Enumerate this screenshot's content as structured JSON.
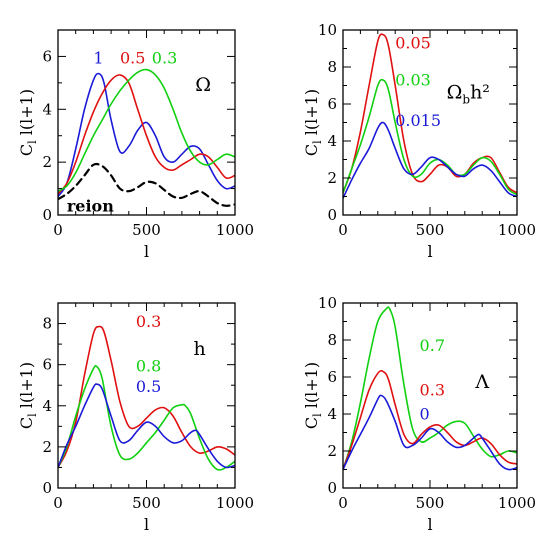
{
  "chart_data": [
    {
      "type": "line",
      "panel": "top-left",
      "xlabel": "l",
      "ylabel": "C_l l(l+1)",
      "xlim": [
        0,
        1000
      ],
      "ylim": [
        0,
        7
      ],
      "xticks": [
        0,
        500,
        1000
      ],
      "xtick_labels": [
        "0",
        "500",
        "1000"
      ],
      "yticks": [
        0,
        2,
        4,
        6
      ],
      "ytick_labels": [
        "0",
        "2",
        "4",
        "6"
      ],
      "symbol": "Ω",
      "symbol_sub": "",
      "symbol_rest": "",
      "series": [
        {
          "name": "1",
          "color": "#1a1ad8",
          "dashed": false,
          "x": [
            0,
            50,
            100,
            150,
            200,
            230,
            260,
            300,
            350,
            400,
            450,
            500,
            550,
            600,
            650,
            700,
            750,
            800,
            850,
            900,
            950,
            1000
          ],
          "y": [
            0.7,
            1.2,
            2.5,
            4.0,
            5.1,
            5.35,
            5.0,
            3.6,
            2.4,
            2.6,
            3.2,
            3.5,
            3.0,
            2.2,
            2.0,
            2.3,
            2.6,
            2.5,
            1.9,
            1.3,
            1.0,
            1.1
          ]
        },
        {
          "name": "0.5",
          "color": "#e01010",
          "dashed": false,
          "x": [
            0,
            50,
            100,
            150,
            200,
            250,
            300,
            350,
            400,
            450,
            500,
            550,
            600,
            650,
            700,
            750,
            800,
            850,
            900,
            950,
            1000
          ],
          "y": [
            0.8,
            1.2,
            2.0,
            3.0,
            3.9,
            4.6,
            5.1,
            5.3,
            5.0,
            4.0,
            3.0,
            2.2,
            1.8,
            1.7,
            1.9,
            2.1,
            2.3,
            2.2,
            1.8,
            1.4,
            1.5
          ]
        },
        {
          "name": "0.3",
          "color": "#10d010",
          "dashed": false,
          "x": [
            0,
            50,
            100,
            150,
            200,
            250,
            300,
            350,
            400,
            450,
            500,
            550,
            600,
            650,
            700,
            750,
            800,
            850,
            900,
            950,
            1000
          ],
          "y": [
            0.9,
            1.1,
            1.6,
            2.3,
            3.0,
            3.6,
            4.2,
            4.7,
            5.1,
            5.4,
            5.5,
            5.3,
            4.8,
            4.0,
            3.1,
            2.4,
            2.0,
            1.9,
            2.1,
            2.3,
            2.2
          ]
        },
        {
          "name": "reion",
          "color": "#000000",
          "dashed": true,
          "x": [
            0,
            50,
            100,
            150,
            200,
            250,
            300,
            350,
            400,
            450,
            500,
            550,
            600,
            650,
            700,
            750,
            800,
            850,
            900,
            950,
            1000
          ],
          "y": [
            0.6,
            0.8,
            1.1,
            1.5,
            1.9,
            1.85,
            1.5,
            1.0,
            0.9,
            1.05,
            1.25,
            1.2,
            0.95,
            0.7,
            0.65,
            0.8,
            0.9,
            0.7,
            0.45,
            0.35,
            0.4
          ]
        }
      ]
    },
    {
      "type": "line",
      "panel": "top-right",
      "xlabel": "l",
      "ylabel": "C_l l(l+1)",
      "xlim": [
        0,
        1000
      ],
      "ylim": [
        0,
        10
      ],
      "xticks": [
        0,
        500,
        1000
      ],
      "xtick_labels": [
        "0",
        "500",
        "1000"
      ],
      "yticks": [
        0,
        2,
        4,
        6,
        8,
        10
      ],
      "ytick_labels": [
        "0",
        "2",
        "4",
        "6",
        "8",
        "10"
      ],
      "symbol": "Ω",
      "symbol_sub": "b",
      "symbol_rest": "h²",
      "series": [
        {
          "name": "0.05",
          "color": "#e01010",
          "dashed": false,
          "x": [
            0,
            50,
            100,
            150,
            200,
            230,
            260,
            300,
            350,
            400,
            450,
            500,
            550,
            600,
            650,
            700,
            750,
            800,
            850,
            900,
            950,
            1000
          ],
          "y": [
            1.2,
            2.5,
            4.5,
            7.0,
            9.4,
            9.75,
            9.2,
            7.0,
            4.0,
            2.2,
            1.8,
            2.2,
            2.7,
            2.6,
            2.1,
            2.2,
            2.8,
            3.1,
            3.1,
            2.3,
            1.5,
            1.2
          ]
        },
        {
          "name": "0.03",
          "color": "#10d010",
          "dashed": false,
          "x": [
            0,
            50,
            100,
            150,
            200,
            230,
            260,
            300,
            350,
            400,
            450,
            500,
            550,
            600,
            650,
            700,
            750,
            800,
            850,
            900,
            950,
            1000
          ],
          "y": [
            1.2,
            2.5,
            3.8,
            5.3,
            7.0,
            7.3,
            6.8,
            5.0,
            3.0,
            2.1,
            2.2,
            2.8,
            3.0,
            2.7,
            2.2,
            2.2,
            2.7,
            3.1,
            2.9,
            2.2,
            1.4,
            1.1
          ]
        },
        {
          "name": "0.015",
          "color": "#1a1ad8",
          "dashed": false,
          "x": [
            0,
            50,
            100,
            150,
            200,
            230,
            260,
            300,
            350,
            400,
            450,
            500,
            550,
            600,
            650,
            700,
            750,
            800,
            850,
            900,
            950,
            1000
          ],
          "y": [
            0.9,
            1.9,
            2.8,
            3.6,
            4.7,
            5.0,
            4.6,
            3.6,
            2.5,
            2.2,
            2.6,
            3.1,
            3.0,
            2.6,
            2.2,
            2.1,
            2.5,
            2.7,
            2.4,
            1.8,
            1.2,
            1.0
          ]
        }
      ]
    },
    {
      "type": "line",
      "panel": "bottom-left",
      "xlabel": "l",
      "ylabel": "C_l l(l+1)",
      "xlim": [
        0,
        1000
      ],
      "ylim": [
        0,
        9
      ],
      "xticks": [
        0,
        500,
        1000
      ],
      "xtick_labels": [
        "0",
        "500",
        "1000"
      ],
      "yticks": [
        0,
        2,
        4,
        6,
        8
      ],
      "ytick_labels": [
        "0",
        "2",
        "4",
        "6",
        "8"
      ],
      "symbol": "h",
      "symbol_sub": "",
      "symbol_rest": "",
      "series": [
        {
          "name": "0.3",
          "color": "#e01010",
          "dashed": false,
          "x": [
            0,
            50,
            100,
            150,
            200,
            230,
            260,
            300,
            350,
            400,
            450,
            500,
            550,
            600,
            650,
            700,
            750,
            800,
            850,
            900,
            950,
            1000
          ],
          "y": [
            1.0,
            1.8,
            3.2,
            5.5,
            7.5,
            7.85,
            7.6,
            6.2,
            4.2,
            3.0,
            3.0,
            3.4,
            3.8,
            3.9,
            3.5,
            2.7,
            2.0,
            1.7,
            1.8,
            2.0,
            1.9,
            1.6
          ]
        },
        {
          "name": "0.8",
          "color": "#10d010",
          "dashed": false,
          "x": [
            0,
            50,
            100,
            150,
            200,
            220,
            250,
            300,
            350,
            400,
            450,
            500,
            550,
            600,
            650,
            700,
            720,
            750,
            800,
            850,
            900,
            950,
            1000
          ],
          "y": [
            1.0,
            2.0,
            3.5,
            4.8,
            5.8,
            5.9,
            5.3,
            3.0,
            1.6,
            1.4,
            1.7,
            2.2,
            2.7,
            3.3,
            3.9,
            4.05,
            4.0,
            3.6,
            2.4,
            1.4,
            0.9,
            1.0,
            1.3
          ]
        },
        {
          "name": "0.5",
          "color": "#1a1ad8",
          "dashed": false,
          "x": [
            0,
            50,
            100,
            150,
            200,
            220,
            250,
            300,
            350,
            400,
            450,
            500,
            550,
            600,
            650,
            700,
            750,
            780,
            800,
            850,
            900,
            950,
            1000
          ],
          "y": [
            1.0,
            2.1,
            3.0,
            4.0,
            4.9,
            5.05,
            4.8,
            3.5,
            2.3,
            2.3,
            2.8,
            3.2,
            3.0,
            2.5,
            2.2,
            2.3,
            2.7,
            2.8,
            2.6,
            1.9,
            1.3,
            1.0,
            1.1
          ]
        }
      ]
    },
    {
      "type": "line",
      "panel": "bottom-right",
      "xlabel": "l",
      "ylabel": "C_l l(l+1)",
      "xlim": [
        0,
        1000
      ],
      "ylim": [
        0,
        10
      ],
      "xticks": [
        0,
        500,
        1000
      ],
      "xtick_labels": [
        "0",
        "500",
        "1000"
      ],
      "yticks": [
        0,
        2,
        4,
        6,
        8,
        10
      ],
      "ytick_labels": [
        "0",
        "2",
        "4",
        "6",
        "8",
        "10"
      ],
      "symbol": "Λ",
      "symbol_sub": "",
      "symbol_rest": "",
      "series": [
        {
          "name": "0.7",
          "color": "#10d010",
          "dashed": false,
          "x": [
            0,
            50,
            100,
            150,
            200,
            250,
            270,
            300,
            350,
            400,
            450,
            500,
            550,
            600,
            650,
            700,
            750,
            800,
            850,
            900,
            950,
            1000
          ],
          "y": [
            1.0,
            2.5,
            4.6,
            7.0,
            9.0,
            9.7,
            9.65,
            8.7,
            5.6,
            3.2,
            2.5,
            2.7,
            3.0,
            3.4,
            3.6,
            3.5,
            2.8,
            2.1,
            1.7,
            1.8,
            2.0,
            1.9
          ]
        },
        {
          "name": "0.3",
          "color": "#e01010",
          "dashed": false,
          "x": [
            0,
            50,
            100,
            150,
            200,
            230,
            260,
            300,
            350,
            400,
            450,
            500,
            550,
            600,
            650,
            700,
            750,
            800,
            850,
            900,
            950,
            1000
          ],
          "y": [
            1.0,
            2.3,
            3.8,
            5.3,
            6.2,
            6.3,
            5.9,
            4.5,
            2.9,
            2.4,
            2.9,
            3.3,
            3.4,
            3.0,
            2.5,
            2.3,
            2.5,
            2.7,
            2.4,
            1.8,
            1.4,
            1.3
          ]
        },
        {
          "name": "0",
          "color": "#1a1ad8",
          "dashed": false,
          "x": [
            0,
            50,
            100,
            150,
            200,
            220,
            250,
            300,
            350,
            400,
            450,
            500,
            550,
            600,
            650,
            700,
            750,
            780,
            800,
            850,
            900,
            950,
            1000
          ],
          "y": [
            1.0,
            2.0,
            2.9,
            3.8,
            4.8,
            5.0,
            4.7,
            3.6,
            2.3,
            2.3,
            2.7,
            3.2,
            3.0,
            2.5,
            2.2,
            2.3,
            2.7,
            2.9,
            2.7,
            2.0,
            1.3,
            1.0,
            1.1
          ]
        }
      ]
    }
  ]
}
